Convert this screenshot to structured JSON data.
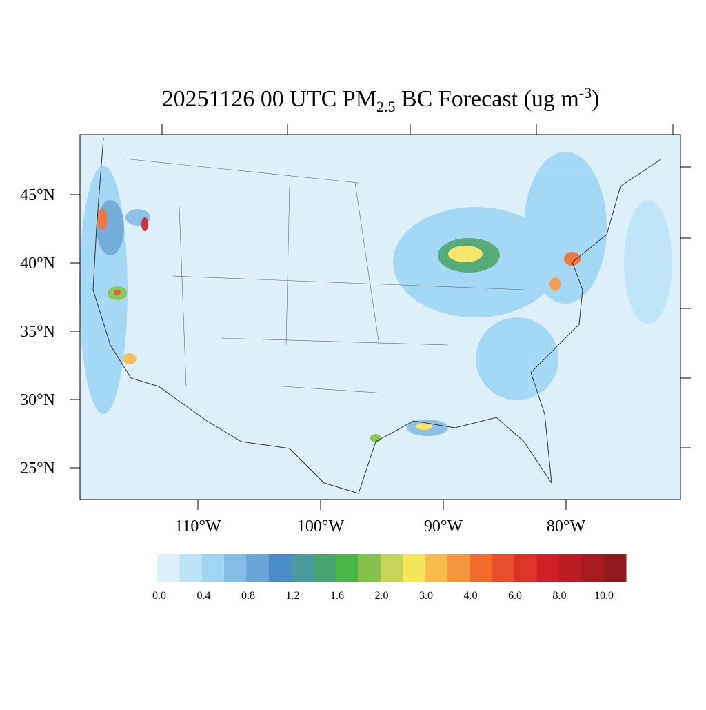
{
  "title": {
    "main": "20251126 00 UTC PM",
    "sub": "2.5",
    "mid": " BC Forecast (ug m",
    "sup": "-3",
    "end": ")"
  },
  "lat_labels": [
    {
      "value": 45,
      "label": "45°N"
    },
    {
      "value": 40,
      "label": "40°N"
    },
    {
      "value": 35,
      "label": "35°N"
    },
    {
      "value": 30,
      "label": "30°N"
    },
    {
      "value": 25,
      "label": "25°N"
    }
  ],
  "lon_labels": [
    {
      "value": 110,
      "label": "110°W"
    },
    {
      "value": 100,
      "label": "100°W"
    },
    {
      "value": 90,
      "label": "90°W"
    },
    {
      "value": 80,
      "label": "80°W"
    }
  ],
  "colorbar": {
    "colors": [
      "#ddf0fa",
      "#bde3f7",
      "#a0d6f4",
      "#85bde4",
      "#6aa6d8",
      "#4a8ccb",
      "#4a9ba0",
      "#48a46e",
      "#4bb548",
      "#84c24c",
      "#c5d65a",
      "#f6e65b",
      "#f8bc4c",
      "#f7953c",
      "#f26b2d",
      "#e84e2b",
      "#dc3527",
      "#cf2027",
      "#bc1d25",
      "#a91b20",
      "#911a1c"
    ],
    "labels": [
      {
        "value": 0,
        "label": "0.0"
      },
      {
        "value": 0.4,
        "label": "0.4"
      },
      {
        "value": 0.8,
        "label": "0.8"
      },
      {
        "value": 1.2,
        "label": "1.2"
      },
      {
        "value": 1.6,
        "label": "1.6"
      },
      {
        "value": 2,
        "label": "2.0"
      },
      {
        "value": 3,
        "label": "3.0"
      },
      {
        "value": 4,
        "label": "4.0"
      },
      {
        "value": 6,
        "label": "6.0"
      },
      {
        "value": 8,
        "label": "8.0"
      },
      {
        "value": 10,
        "label": "10.0"
      }
    ]
  }
}
